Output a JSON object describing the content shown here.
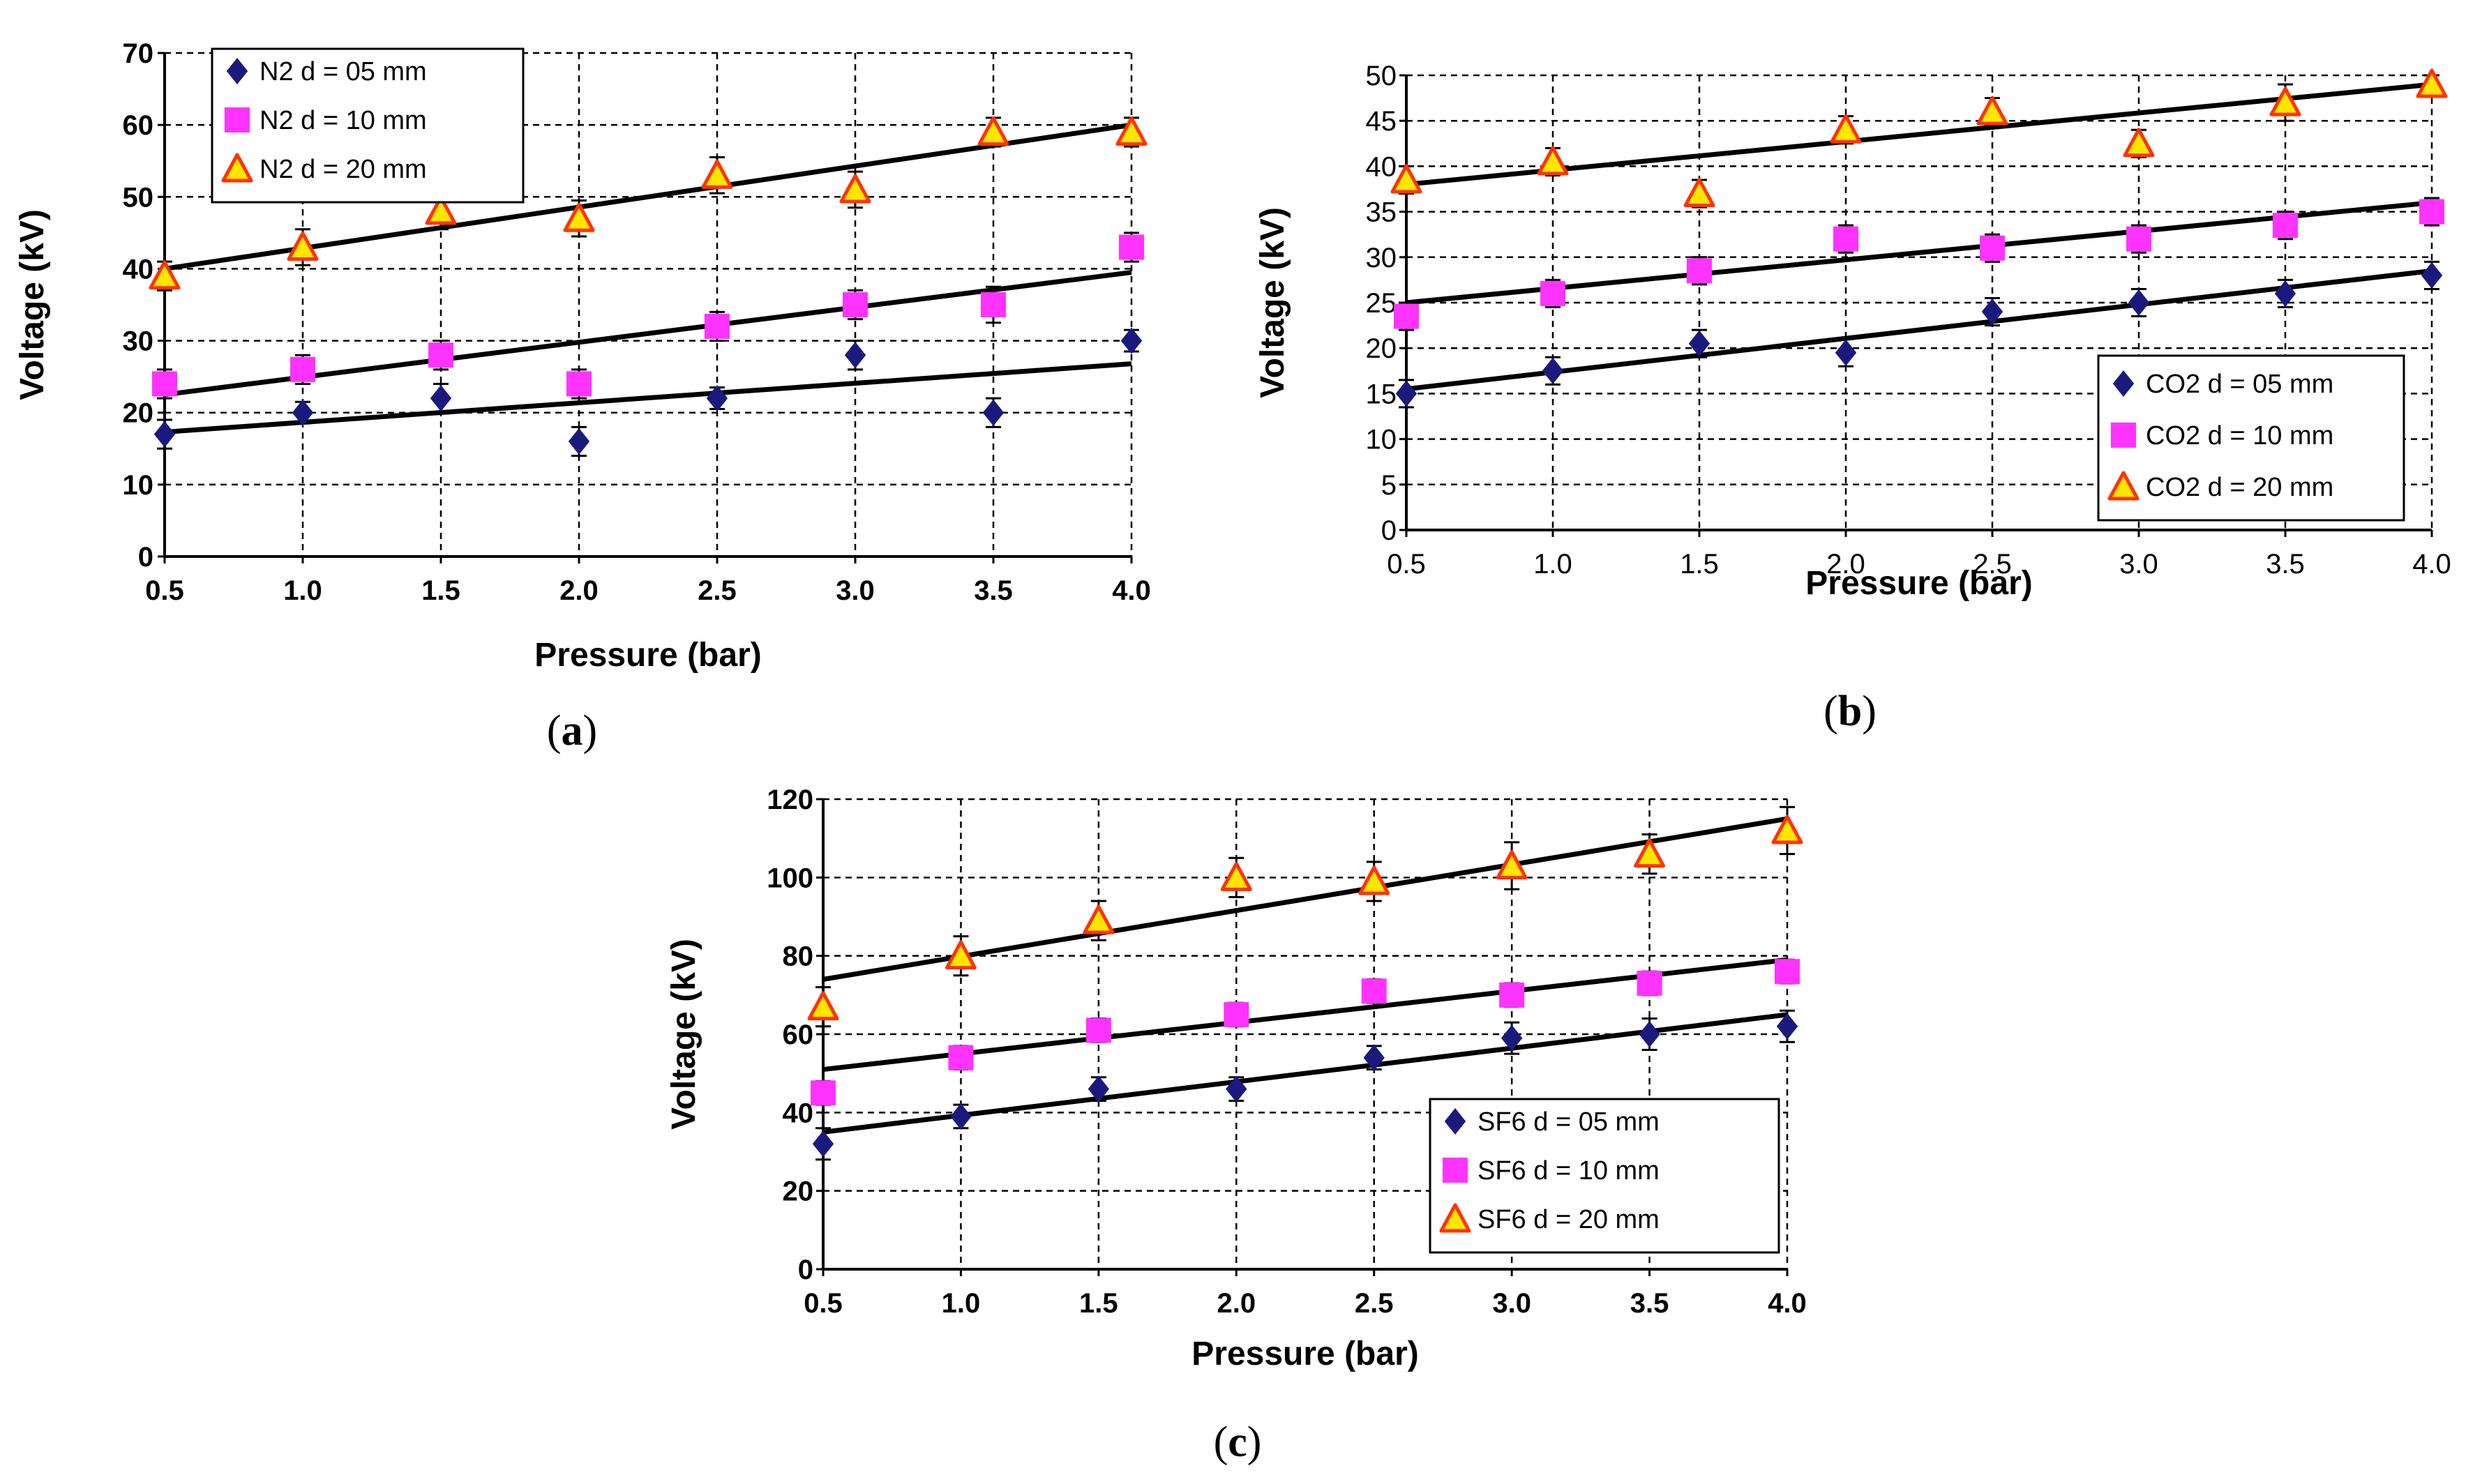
{
  "chart_data": [
    {
      "panel": "a",
      "type": "scatter",
      "x": [
        0.5,
        1.0,
        1.5,
        2.0,
        2.5,
        3.0,
        3.5,
        4.0
      ],
      "xtick_labels": [
        "0.5",
        "1.0",
        "1.5",
        "2.0",
        "2.5",
        "3.0",
        "3.5",
        "4.0"
      ],
      "xlim": [
        0.5,
        4.0
      ],
      "ylim": [
        0,
        70
      ],
      "yticks": [
        0,
        10,
        20,
        30,
        40,
        50,
        60,
        70
      ],
      "xlabel": "Pressure (bar)",
      "ylabel": "Voltage (kV)",
      "grid": true,
      "legend_position": "top-left",
      "series": [
        {
          "name": "N2 d = 05 mm",
          "marker": "diamond",
          "values": [
            17,
            20,
            22,
            16,
            22,
            28,
            20,
            30
          ],
          "error": [
            2,
            1.5,
            2,
            2,
            1.5,
            2,
            2,
            1.5
          ],
          "trend": [
            17.3,
            26.8
          ]
        },
        {
          "name": "N2 d = 10 mm",
          "marker": "square",
          "values": [
            24,
            26,
            28,
            24,
            32,
            35,
            35,
            43
          ],
          "error": [
            2,
            2,
            2,
            2,
            2,
            2,
            2.5,
            2
          ],
          "trend": [
            22.5,
            39.5
          ]
        },
        {
          "name": "N2 d = 20 mm",
          "marker": "triangle",
          "values": [
            39,
            43,
            48,
            47,
            53,
            51,
            59,
            59
          ],
          "error": [
            2,
            2.5,
            2.5,
            2.5,
            2.5,
            2.5,
            2,
            2
          ],
          "trend": [
            40,
            60
          ]
        }
      ]
    },
    {
      "panel": "b",
      "type": "scatter",
      "x": [
        0.5,
        1.0,
        1.5,
        2.0,
        2.5,
        3.0,
        3.5,
        4.0
      ],
      "xtick_labels": [
        "0.5",
        "1.0",
        "1.5",
        "2.0",
        "2.5",
        "3.0",
        "3.5",
        "4.0"
      ],
      "xlim": [
        0.5,
        4.0
      ],
      "ylim": [
        0,
        50
      ],
      "yticks": [
        0,
        5,
        10,
        15,
        20,
        25,
        30,
        35,
        40,
        45,
        50
      ],
      "xlabel": "Pressure (bar)",
      "ylabel": "Voltage (kV)",
      "grid": true,
      "legend_position": "bottom-right",
      "series": [
        {
          "name": "CO2 d = 05 mm",
          "marker": "diamond",
          "values": [
            15,
            17.5,
            20.5,
            19.5,
            24,
            25,
            26,
            28
          ],
          "error": [
            1.5,
            1.5,
            1.5,
            1.5,
            1.5,
            1.5,
            1.5,
            1.5
          ],
          "trend": [
            15.5,
            28.5
          ]
        },
        {
          "name": "CO2 d = 10 mm",
          "marker": "square",
          "values": [
            23.5,
            26,
            28.5,
            32,
            31,
            32,
            33.5,
            35
          ],
          "error": [
            1.5,
            1.5,
            1.5,
            1.5,
            1.5,
            1.5,
            1.5,
            1.5
          ],
          "trend": [
            25,
            36
          ]
        },
        {
          "name": "CO2 d = 20 mm",
          "marker": "triangle",
          "values": [
            38.5,
            40.5,
            37,
            44,
            46,
            42.5,
            47,
            49
          ],
          "error": [
            1.5,
            1.5,
            1.5,
            1.5,
            1.5,
            1.5,
            2,
            1
          ],
          "trend": [
            38,
            49
          ]
        }
      ]
    },
    {
      "panel": "c",
      "type": "scatter",
      "x": [
        0.5,
        1.0,
        1.5,
        2.0,
        2.5,
        3.0,
        3.5,
        4.0
      ],
      "xtick_labels": [
        "0.5",
        "1.0",
        "1.5",
        "2.0",
        "2.5",
        "3.0",
        "3.5",
        "4.0"
      ],
      "xlim": [
        0.5,
        4.0
      ],
      "ylim": [
        0,
        120
      ],
      "yticks": [
        0,
        20,
        40,
        60,
        80,
        100,
        120
      ],
      "xlabel": "Pressure (bar)",
      "ylabel": "Voltage (kV)",
      "grid": true,
      "legend_position": "bottom-right",
      "series": [
        {
          "name": "SF6 d = 05 mm",
          "marker": "diamond",
          "values": [
            32,
            39,
            46,
            46,
            54,
            59,
            60,
            62
          ],
          "error": [
            4,
            3,
            3,
            3,
            3,
            4,
            4,
            4
          ],
          "trend": [
            35,
            65
          ]
        },
        {
          "name": "SF6 d = 10 mm",
          "marker": "square",
          "values": [
            45,
            54,
            61,
            65,
            71,
            70,
            73,
            76
          ],
          "error": [
            3,
            3,
            3,
            3,
            3,
            3,
            3,
            3
          ],
          "trend": [
            51,
            79
          ]
        },
        {
          "name": "SF6 d = 20 mm",
          "marker": "triangle",
          "values": [
            67,
            80,
            89,
            100,
            99,
            103,
            106,
            112
          ],
          "error": [
            5,
            5,
            5,
            5,
            5,
            6,
            5,
            6
          ],
          "trend": [
            74,
            115
          ]
        }
      ]
    }
  ],
  "panel_labels": [
    "a",
    "b",
    "c"
  ],
  "colors": {
    "diamond": "#1a1a7e",
    "square": "#ff33ff",
    "triangle_fill": "#ffe600",
    "triangle_stroke": "#ff3300",
    "trend": "#000000",
    "grid": "#000000"
  }
}
